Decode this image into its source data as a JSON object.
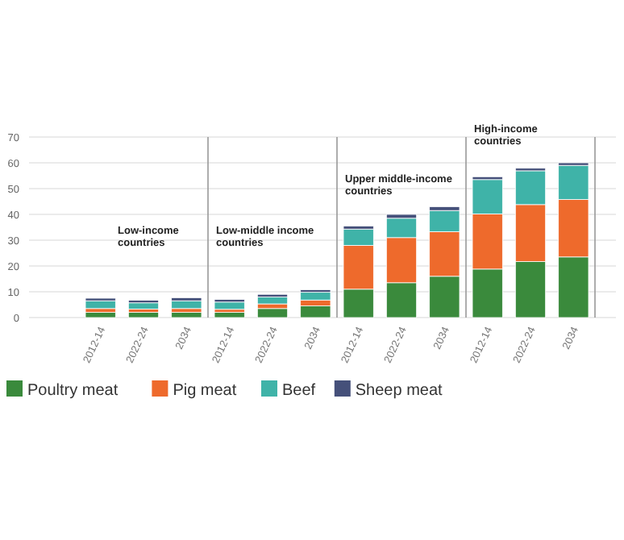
{
  "chart_data": {
    "type": "bar",
    "stacked": true,
    "categories": [
      "2012-14",
      "2022-24",
      "2034",
      "2012-14",
      "2022-24",
      "2034",
      "2012-14",
      "2022-24",
      "2034",
      "2012-14",
      "2022-24",
      "2034"
    ],
    "series": [
      {
        "name": "Poultry meat",
        "color": "#3a8a3c",
        "values": [
          2,
          2,
          2,
          2,
          3.5,
          4.5,
          11,
          13.5,
          16,
          18.8,
          21.7,
          23.5
        ]
      },
      {
        "name": "Pig meat",
        "color": "#ee6a2c",
        "values": [
          1.5,
          1.3,
          1.5,
          1.2,
          1.8,
          2.3,
          17,
          17.5,
          17.3,
          21.4,
          22.1,
          22.3
        ]
      },
      {
        "name": "Beef",
        "color": "#3fb3a8",
        "values": [
          3,
          2.4,
          3,
          2.8,
          2.7,
          3,
          6.3,
          7.5,
          8.2,
          13.3,
          13.1,
          13.2
        ]
      },
      {
        "name": "Sheep meat",
        "color": "#45507a",
        "values": [
          1,
          1,
          1.2,
          1,
          1,
          1,
          1.2,
          1.5,
          1.5,
          1.1,
          1,
          1
        ]
      }
    ],
    "ylim": [
      0,
      70
    ],
    "yticks": [
      0,
      10,
      20,
      30,
      40,
      50,
      60,
      70
    ],
    "grid": "y",
    "legend": "bottom",
    "annotations": [
      "Low-income countries",
      "Low-middle income countries",
      "Upper middle-income countries",
      "High-income countries"
    ]
  }
}
